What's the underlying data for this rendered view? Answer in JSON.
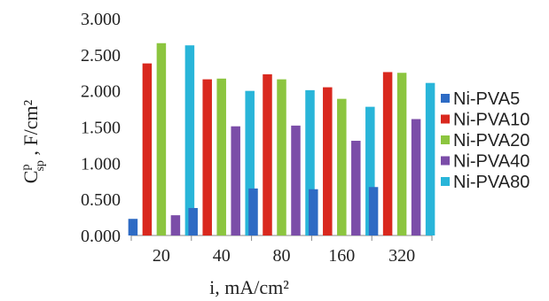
{
  "chart_data": {
    "type": "bar",
    "categories": [
      "20",
      "40",
      "80",
      "160",
      "320"
    ],
    "series": [
      {
        "name": "Ni-PVA5",
        "color": "#2E6BC4",
        "values": [
          0.23,
          0.38,
          0.65,
          0.64,
          0.67
        ]
      },
      {
        "name": "Ni-PVA10",
        "color": "#D9281E",
        "values": [
          2.38,
          2.16,
          2.23,
          2.05,
          2.26
        ]
      },
      {
        "name": "Ni-PVA20",
        "color": "#8CC53F",
        "values": [
          2.66,
          2.17,
          2.16,
          1.89,
          2.25
        ]
      },
      {
        "name": "Ni-PVA40",
        "color": "#7B4DA8",
        "values": [
          0.28,
          1.51,
          1.52,
          1.31,
          1.61
        ]
      },
      {
        "name": "Ni-PVA80",
        "color": "#29B5D9",
        "values": [
          2.63,
          2.0,
          2.01,
          1.78,
          2.11
        ]
      }
    ],
    "y_ticks": [
      "0.000",
      "0.500",
      "1.000",
      "1.500",
      "2.000",
      "2.500",
      "3.000"
    ],
    "ylim": [
      0,
      3
    ],
    "xlabel": "i, mA/cm²",
    "ylabel_main": "C",
    "ylabel_sup": "p",
    "ylabel_sub": "sp",
    "ylabel_rest": " ,  F/cm²",
    "legend_position": "right",
    "grid": false
  }
}
